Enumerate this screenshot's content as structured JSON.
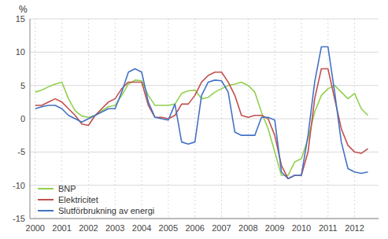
{
  "chart_data": {
    "type": "line",
    "ylabel": "%",
    "x": [
      2000.0,
      2000.25,
      2000.5,
      2000.75,
      2001.0,
      2001.25,
      2001.5,
      2001.75,
      2002.0,
      2002.25,
      2002.5,
      2002.75,
      2003.0,
      2003.25,
      2003.5,
      2003.75,
      2004.0,
      2004.25,
      2004.5,
      2004.75,
      2005.0,
      2005.25,
      2005.5,
      2005.75,
      2006.0,
      2006.25,
      2006.5,
      2006.75,
      2007.0,
      2007.25,
      2007.5,
      2007.75,
      2008.0,
      2008.25,
      2008.5,
      2008.75,
      2009.0,
      2009.25,
      2009.5,
      2009.75,
      2010.0,
      2010.25,
      2010.5,
      2010.75,
      2011.0,
      2011.25,
      2011.5,
      2011.75,
      2012.0,
      2012.25,
      2012.5
    ],
    "series": [
      {
        "name": "BNP",
        "color": "#92d050",
        "values": [
          4.0,
          4.3,
          4.8,
          5.2,
          5.5,
          3.0,
          1.2,
          0.4,
          0.2,
          0.5,
          1.2,
          1.8,
          2.0,
          3.5,
          5.2,
          5.8,
          5.7,
          3.5,
          2.0,
          2.0,
          2.0,
          2.2,
          3.8,
          4.2,
          4.3,
          3.0,
          3.2,
          4.0,
          4.5,
          5.0,
          5.2,
          5.5,
          5.0,
          4.0,
          1.0,
          -1.5,
          -5.0,
          -8.5,
          -8.5,
          -6.5,
          -6.0,
          -3.0,
          1.0,
          3.5,
          4.5,
          5.0,
          4.0,
          3.0,
          3.8,
          1.5,
          0.5
        ]
      },
      {
        "name": "Elektricitet",
        "color": "#c0504d",
        "values": [
          2.0,
          2.0,
          2.5,
          3.0,
          2.5,
          1.5,
          0.5,
          -0.8,
          -1.0,
          0.5,
          1.5,
          2.5,
          3.0,
          4.5,
          5.5,
          5.5,
          5.5,
          2.0,
          0.2,
          0.2,
          0.0,
          0.5,
          2.2,
          2.2,
          3.5,
          5.5,
          6.5,
          7.0,
          7.0,
          5.5,
          3.5,
          0.5,
          0.2,
          0.5,
          0.5,
          0.0,
          -2.5,
          -7.0,
          -9.0,
          -8.5,
          -8.5,
          -5.0,
          3.0,
          7.5,
          7.5,
          3.0,
          -1.5,
          -4.0,
          -5.0,
          -5.2,
          -4.5
        ]
      },
      {
        "name": "Slutförbrukning av energi",
        "color": "#4472c4",
        "values": [
          1.5,
          1.8,
          2.0,
          2.0,
          1.5,
          0.5,
          0.0,
          -0.5,
          0.0,
          0.5,
          1.0,
          1.5,
          1.5,
          4.0,
          7.0,
          7.5,
          7.0,
          2.5,
          0.2,
          0.0,
          -0.2,
          2.2,
          -3.5,
          -3.8,
          -3.5,
          3.5,
          5.5,
          5.8,
          5.7,
          4.0,
          -2.0,
          -2.5,
          -2.5,
          -2.5,
          0.2,
          0.2,
          -0.2,
          -8.0,
          -9.0,
          -8.5,
          -8.5,
          -2.5,
          5.5,
          10.8,
          10.8,
          4.0,
          -3.5,
          -7.5,
          -8.0,
          -8.2,
          -8.0
        ]
      }
    ],
    "xlim": [
      1999.8,
      2012.9
    ],
    "xticks": [
      2000,
      2001,
      2002,
      2003,
      2004,
      2005,
      2006,
      2007,
      2008,
      2009,
      2010,
      2011,
      2012
    ],
    "ylim": [
      -15,
      15
    ],
    "yticks": [
      -15,
      -10,
      -5,
      0,
      5,
      10,
      15
    ],
    "grid": true,
    "legend": "lower left"
  }
}
